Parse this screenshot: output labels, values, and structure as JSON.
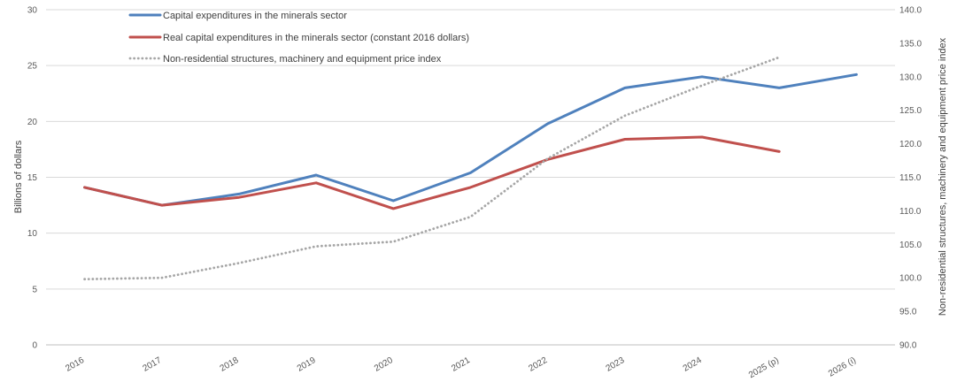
{
  "chart_data": {
    "type": "line",
    "categories": [
      "2016",
      "2017",
      "2018",
      "2019",
      "2020",
      "2021",
      "2022",
      "2023",
      "2024",
      "2025 (p)",
      "2026 (i)"
    ],
    "series": [
      {
        "name": "Capital expenditures in the minerals sector",
        "axis": "left",
        "color": "#4f81bd",
        "style": "solid",
        "values": [
          14.1,
          12.5,
          13.5,
          15.2,
          12.9,
          15.4,
          19.8,
          23.0,
          24.0,
          23.0,
          24.2
        ]
      },
      {
        "name": "Real capital expenditures in the minerals sector (constant 2016 dollars)",
        "axis": "left",
        "color": "#c0504d",
        "style": "solid",
        "values": [
          14.1,
          12.5,
          13.2,
          14.5,
          12.2,
          14.1,
          16.6,
          18.4,
          18.6,
          17.3,
          null
        ]
      },
      {
        "name": "Non-residential structures, machinery and equipment price index",
        "axis": "right",
        "color": "#a6a6a6",
        "style": "dotted",
        "values": [
          99.8,
          100.0,
          102.2,
          104.7,
          105.4,
          109.1,
          117.8,
          124.2,
          128.7,
          132.9,
          null
        ]
      }
    ],
    "ylabel": "Billions of dollars",
    "ylim": [
      0,
      30
    ],
    "yticks": [
      0,
      5,
      10,
      15,
      20,
      25,
      30
    ],
    "y2label": "Non-residential structures, machinery and equipment price index",
    "y2lim": [
      90,
      140
    ],
    "y2ticks": [
      "90.0",
      "95.0",
      "100.0",
      "105.0",
      "110.0",
      "115.0",
      "120.0",
      "125.0",
      "130.0",
      "135.0",
      "140.0"
    ],
    "grid": "horizontal",
    "legend": "top-left"
  }
}
